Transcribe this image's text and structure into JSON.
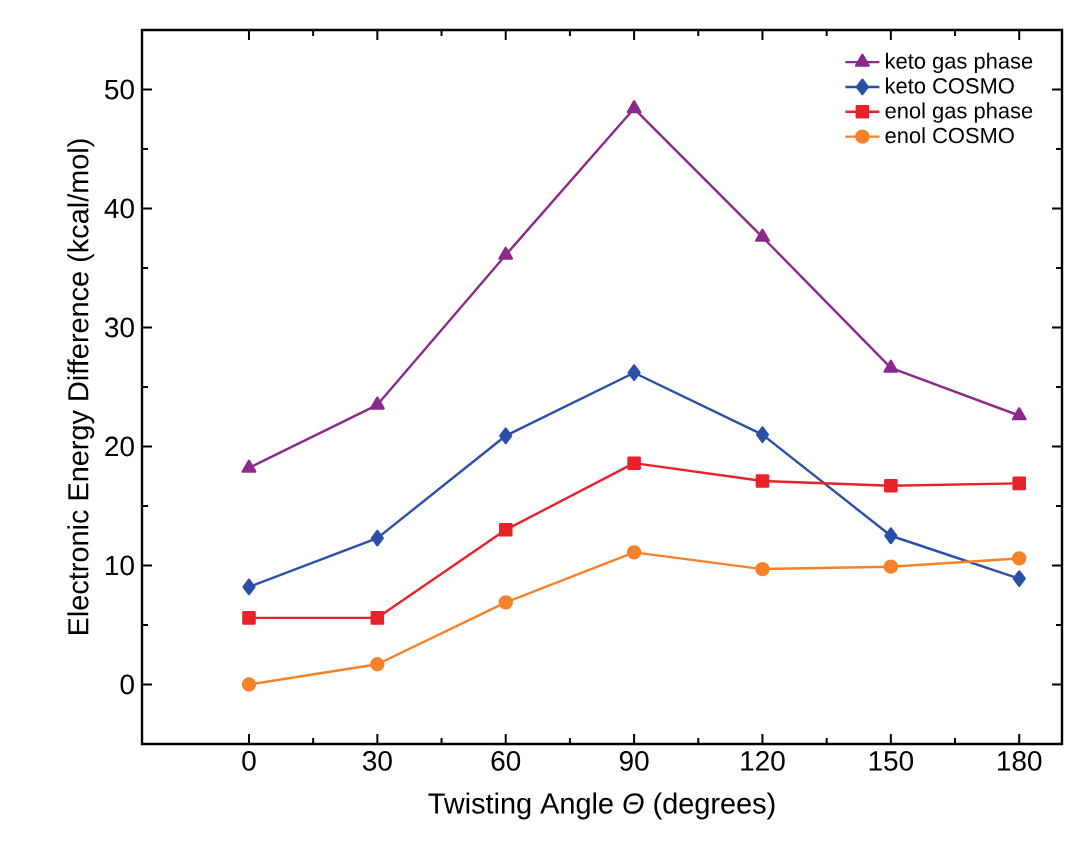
{
  "chart_data": {
    "type": "line",
    "xlabel": "Twisting Angle *Θ* (degrees)",
    "ylabel": "Electronic Energy Difference (kcal/mol)",
    "x": [
      0,
      30,
      60,
      90,
      120,
      150,
      180
    ],
    "xlim": [
      -25,
      190
    ],
    "xticks": [
      0,
      30,
      60,
      90,
      120,
      150,
      180
    ],
    "ylim": [
      -5,
      55
    ],
    "yticks": [
      0,
      10,
      20,
      30,
      40,
      50
    ],
    "legend": "top right",
    "grid": false,
    "series": [
      {
        "name": "keto gas phase",
        "color": "#8b2a8b",
        "marker": "triangle",
        "values": [
          18.2,
          23.5,
          36.1,
          48.4,
          37.6,
          26.6,
          22.6
        ]
      },
      {
        "name": "keto COSMO",
        "color": "#2a4fa8",
        "marker": "diamond",
        "values": [
          8.2,
          12.3,
          20.9,
          26.2,
          21.0,
          12.5,
          8.9
        ]
      },
      {
        "name": "enol gas phase",
        "color": "#e8222a",
        "marker": "square",
        "values": [
          5.6,
          5.6,
          13.0,
          18.6,
          17.1,
          16.7,
          16.9
        ]
      },
      {
        "name": "enol COSMO",
        "color": "#f5822a",
        "marker": "circle",
        "values": [
          0,
          1.7,
          6.9,
          11.1,
          9.7,
          9.9,
          10.6
        ]
      }
    ]
  }
}
